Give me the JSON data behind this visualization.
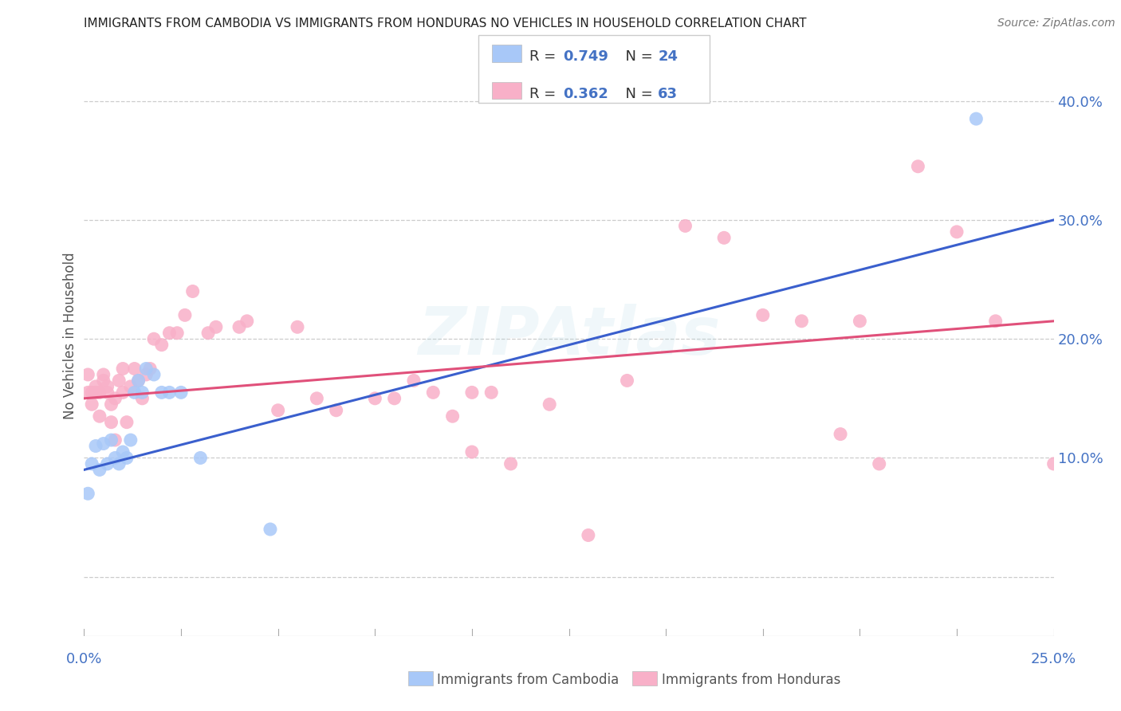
{
  "title": "IMMIGRANTS FROM CAMBODIA VS IMMIGRANTS FROM HONDURAS NO VEHICLES IN HOUSEHOLD CORRELATION CHART",
  "source": "Source: ZipAtlas.com",
  "ylabel": "No Vehicles in Household",
  "xlim": [
    0.0,
    0.25
  ],
  "ylim": [
    -0.05,
    0.455
  ],
  "yticks": [
    0.0,
    0.1,
    0.2,
    0.3,
    0.4
  ],
  "ytick_labels": [
    "",
    "10.0%",
    "20.0%",
    "30.0%",
    "40.0%"
  ],
  "color_cambodia": "#a8c8f8",
  "color_cambodia_line": "#3a5fcd",
  "color_honduras": "#f8b0c8",
  "color_honduras_line": "#e0507a",
  "cam_line_y0": 0.09,
  "cam_line_y1": 0.3,
  "hon_line_y0": 0.15,
  "hon_line_y1": 0.215,
  "cambodia_x": [
    0.001,
    0.002,
    0.003,
    0.004,
    0.005,
    0.006,
    0.007,
    0.008,
    0.009,
    0.01,
    0.011,
    0.012,
    0.013,
    0.014,
    0.015,
    0.016,
    0.018,
    0.02,
    0.022,
    0.025,
    0.03,
    0.048,
    0.23
  ],
  "cambodia_y": [
    0.07,
    0.095,
    0.11,
    0.09,
    0.112,
    0.095,
    0.115,
    0.1,
    0.095,
    0.105,
    0.1,
    0.115,
    0.155,
    0.165,
    0.155,
    0.175,
    0.17,
    0.155,
    0.155,
    0.155,
    0.1,
    0.04,
    0.385
  ],
  "honduras_x": [
    0.001,
    0.001,
    0.002,
    0.002,
    0.003,
    0.003,
    0.004,
    0.004,
    0.005,
    0.005,
    0.006,
    0.006,
    0.007,
    0.007,
    0.008,
    0.008,
    0.009,
    0.01,
    0.01,
    0.011,
    0.012,
    0.013,
    0.014,
    0.015,
    0.016,
    0.017,
    0.018,
    0.02,
    0.022,
    0.024,
    0.026,
    0.028,
    0.032,
    0.034,
    0.04,
    0.042,
    0.05,
    0.055,
    0.06,
    0.065,
    0.075,
    0.08,
    0.085,
    0.09,
    0.095,
    0.1,
    0.1,
    0.105,
    0.11,
    0.12,
    0.13,
    0.14,
    0.155,
    0.165,
    0.175,
    0.185,
    0.195,
    0.2,
    0.205,
    0.215,
    0.225,
    0.235,
    0.25
  ],
  "honduras_y": [
    0.17,
    0.155,
    0.145,
    0.155,
    0.155,
    0.16,
    0.135,
    0.155,
    0.17,
    0.165,
    0.155,
    0.16,
    0.145,
    0.13,
    0.115,
    0.15,
    0.165,
    0.155,
    0.175,
    0.13,
    0.16,
    0.175,
    0.165,
    0.15,
    0.17,
    0.175,
    0.2,
    0.195,
    0.205,
    0.205,
    0.22,
    0.24,
    0.205,
    0.21,
    0.21,
    0.215,
    0.14,
    0.21,
    0.15,
    0.14,
    0.15,
    0.15,
    0.165,
    0.155,
    0.135,
    0.155,
    0.105,
    0.155,
    0.095,
    0.145,
    0.035,
    0.165,
    0.295,
    0.285,
    0.22,
    0.215,
    0.12,
    0.215,
    0.095,
    0.345,
    0.29,
    0.215,
    0.095
  ]
}
